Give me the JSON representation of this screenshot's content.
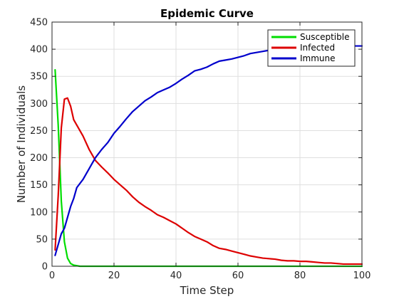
{
  "chart_data": {
    "type": "line",
    "title": "Epidemic Curve",
    "xlabel": "Time Step",
    "ylabel": "Number of Individuals",
    "xlim": [
      0,
      100
    ],
    "ylim": [
      0,
      450
    ],
    "xticks": [
      0,
      20,
      40,
      60,
      80,
      100
    ],
    "yticks": [
      0,
      50,
      100,
      150,
      200,
      250,
      300,
      350,
      400,
      450
    ],
    "grid": true,
    "legend_position": "top-right",
    "series": [
      {
        "name": "Susceptible",
        "color": "#00dd00",
        "x": [
          1,
          2,
          3,
          4,
          5,
          6,
          7,
          8,
          9,
          10,
          15,
          20,
          40,
          60,
          80,
          100
        ],
        "y": [
          362,
          260,
          120,
          45,
          15,
          5,
          2,
          1,
          0,
          0,
          0,
          0,
          0,
          0,
          0,
          0
        ]
      },
      {
        "name": "Infected",
        "color": "#dd0000",
        "x": [
          1,
          2,
          3,
          4,
          5,
          6,
          7,
          8,
          10,
          12,
          14,
          16,
          18,
          20,
          22,
          24,
          26,
          28,
          30,
          32,
          34,
          36,
          38,
          40,
          42,
          44,
          46,
          48,
          50,
          52,
          54,
          56,
          58,
          60,
          62,
          64,
          66,
          68,
          70,
          72,
          74,
          76,
          78,
          80,
          82,
          84,
          86,
          88,
          90,
          92,
          94,
          96,
          98,
          100
        ],
        "y": [
          30,
          130,
          255,
          308,
          310,
          295,
          270,
          260,
          240,
          215,
          195,
          183,
          172,
          160,
          150,
          140,
          128,
          118,
          110,
          103,
          95,
          90,
          84,
          78,
          70,
          62,
          55,
          50,
          45,
          38,
          33,
          31,
          28,
          25,
          22,
          19,
          17,
          15,
          14,
          13,
          11,
          10,
          10,
          9,
          9,
          8,
          7,
          6,
          6,
          5,
          4,
          4,
          4,
          4
        ]
      },
      {
        "name": "Immune",
        "color": "#0000cc",
        "x": [
          1,
          2,
          3,
          4,
          5,
          6,
          7,
          8,
          10,
          12,
          14,
          16,
          18,
          20,
          22,
          24,
          26,
          28,
          30,
          32,
          34,
          36,
          38,
          40,
          42,
          44,
          46,
          48,
          50,
          52,
          54,
          56,
          58,
          60,
          62,
          64,
          66,
          68,
          70,
          72,
          74,
          76,
          78,
          80,
          82,
          84,
          86,
          88,
          90,
          92,
          94,
          96,
          98,
          100
        ],
        "y": [
          20,
          40,
          60,
          70,
          90,
          110,
          125,
          145,
          160,
          180,
          200,
          215,
          228,
          245,
          258,
          272,
          285,
          295,
          305,
          312,
          320,
          325,
          330,
          337,
          345,
          352,
          360,
          363,
          367,
          373,
          378,
          380,
          382,
          385,
          388,
          392,
          394,
          396,
          398,
          399,
          400,
          401,
          402,
          403,
          403,
          404,
          404,
          405,
          405,
          405,
          406,
          406,
          406,
          406
        ]
      }
    ]
  }
}
